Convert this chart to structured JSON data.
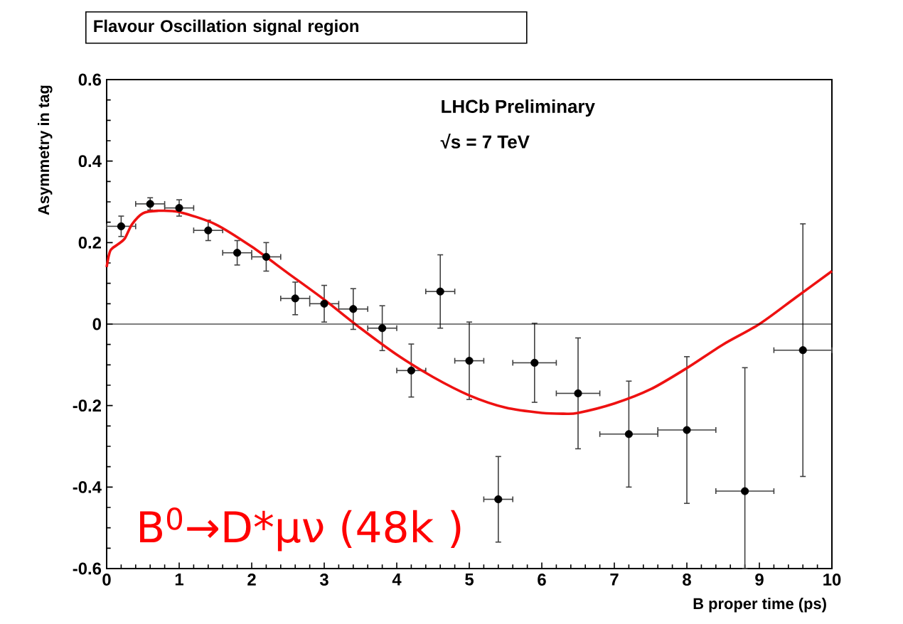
{
  "chart_data": {
    "type": "scatter",
    "title": "Flavour Oscillation signal region",
    "xlabel": "B proper time (ps)",
    "ylabel": "Asymmetry in tag",
    "xlim": [
      0,
      10
    ],
    "ylim": [
      -0.6,
      0.6
    ],
    "xticks": [
      0,
      1,
      2,
      3,
      4,
      5,
      6,
      7,
      8,
      9,
      10
    ],
    "yticks": [
      -0.6,
      -0.4,
      -0.2,
      0,
      0.2,
      0.4,
      0.6
    ],
    "grid": false,
    "series": [
      {
        "color": "#000000",
        "marker": "circle",
        "x": [
          0.2,
          0.6,
          1.0,
          1.4,
          1.8,
          2.2,
          2.6,
          3.0,
          3.4,
          3.8,
          4.2,
          4.6,
          5.0,
          5.4,
          5.9,
          6.5,
          7.2,
          8.0,
          8.8,
          9.6
        ],
        "values": [
          0.24,
          0.295,
          0.285,
          0.23,
          0.175,
          0.165,
          0.063,
          0.05,
          0.037,
          -0.01,
          -0.114,
          0.08,
          -0.09,
          -0.43,
          -0.095,
          -0.17,
          -0.27,
          -0.26,
          -0.41,
          -0.064
        ],
        "errors": [
          0.025,
          0.015,
          0.02,
          0.025,
          0.03,
          0.035,
          0.04,
          0.045,
          0.05,
          0.055,
          0.065,
          0.09,
          0.095,
          0.105,
          0.097,
          0.136,
          0.13,
          0.18,
          [
            -0.6,
            -0.107
          ],
          0.31
        ],
        "xerrors": [
          0.2,
          0.2,
          0.2,
          0.2,
          0.2,
          0.2,
          0.2,
          0.2,
          0.2,
          0.2,
          0.2,
          0.2,
          0.2,
          0.2,
          0.3,
          0.3,
          0.4,
          0.4,
          0.4,
          0.4
        ]
      },
      {
        "type": "line",
        "color": "#ee1111",
        "marker": "none",
        "line_style": "solid",
        "x": [
          0,
          0.05,
          0.15,
          0.25,
          0.35,
          0.5,
          0.7,
          1.0,
          1.5,
          2.0,
          2.5,
          3.0,
          3.5,
          4.0,
          4.5,
          5.0,
          5.5,
          6.0,
          6.3,
          6.5,
          7.0,
          7.5,
          8.0,
          8.5,
          9.0,
          9.5,
          10.0
        ],
        "values": [
          0.14,
          0.18,
          0.195,
          0.21,
          0.245,
          0.272,
          0.278,
          0.275,
          0.245,
          0.19,
          0.125,
          0.06,
          -0.01,
          -0.075,
          -0.13,
          -0.175,
          -0.205,
          -0.218,
          -0.22,
          -0.218,
          -0.195,
          -0.16,
          -0.108,
          -0.05,
          0.0,
          0.065,
          0.13
        ]
      }
    ],
    "ref_lines": [
      {
        "axis": "y",
        "value": 0,
        "color": "#000000"
      }
    ],
    "annotations": [
      "LHCb Preliminary",
      "√s = 7 TeV",
      "B$^{0}$→D*μν  (48k )"
    ]
  }
}
